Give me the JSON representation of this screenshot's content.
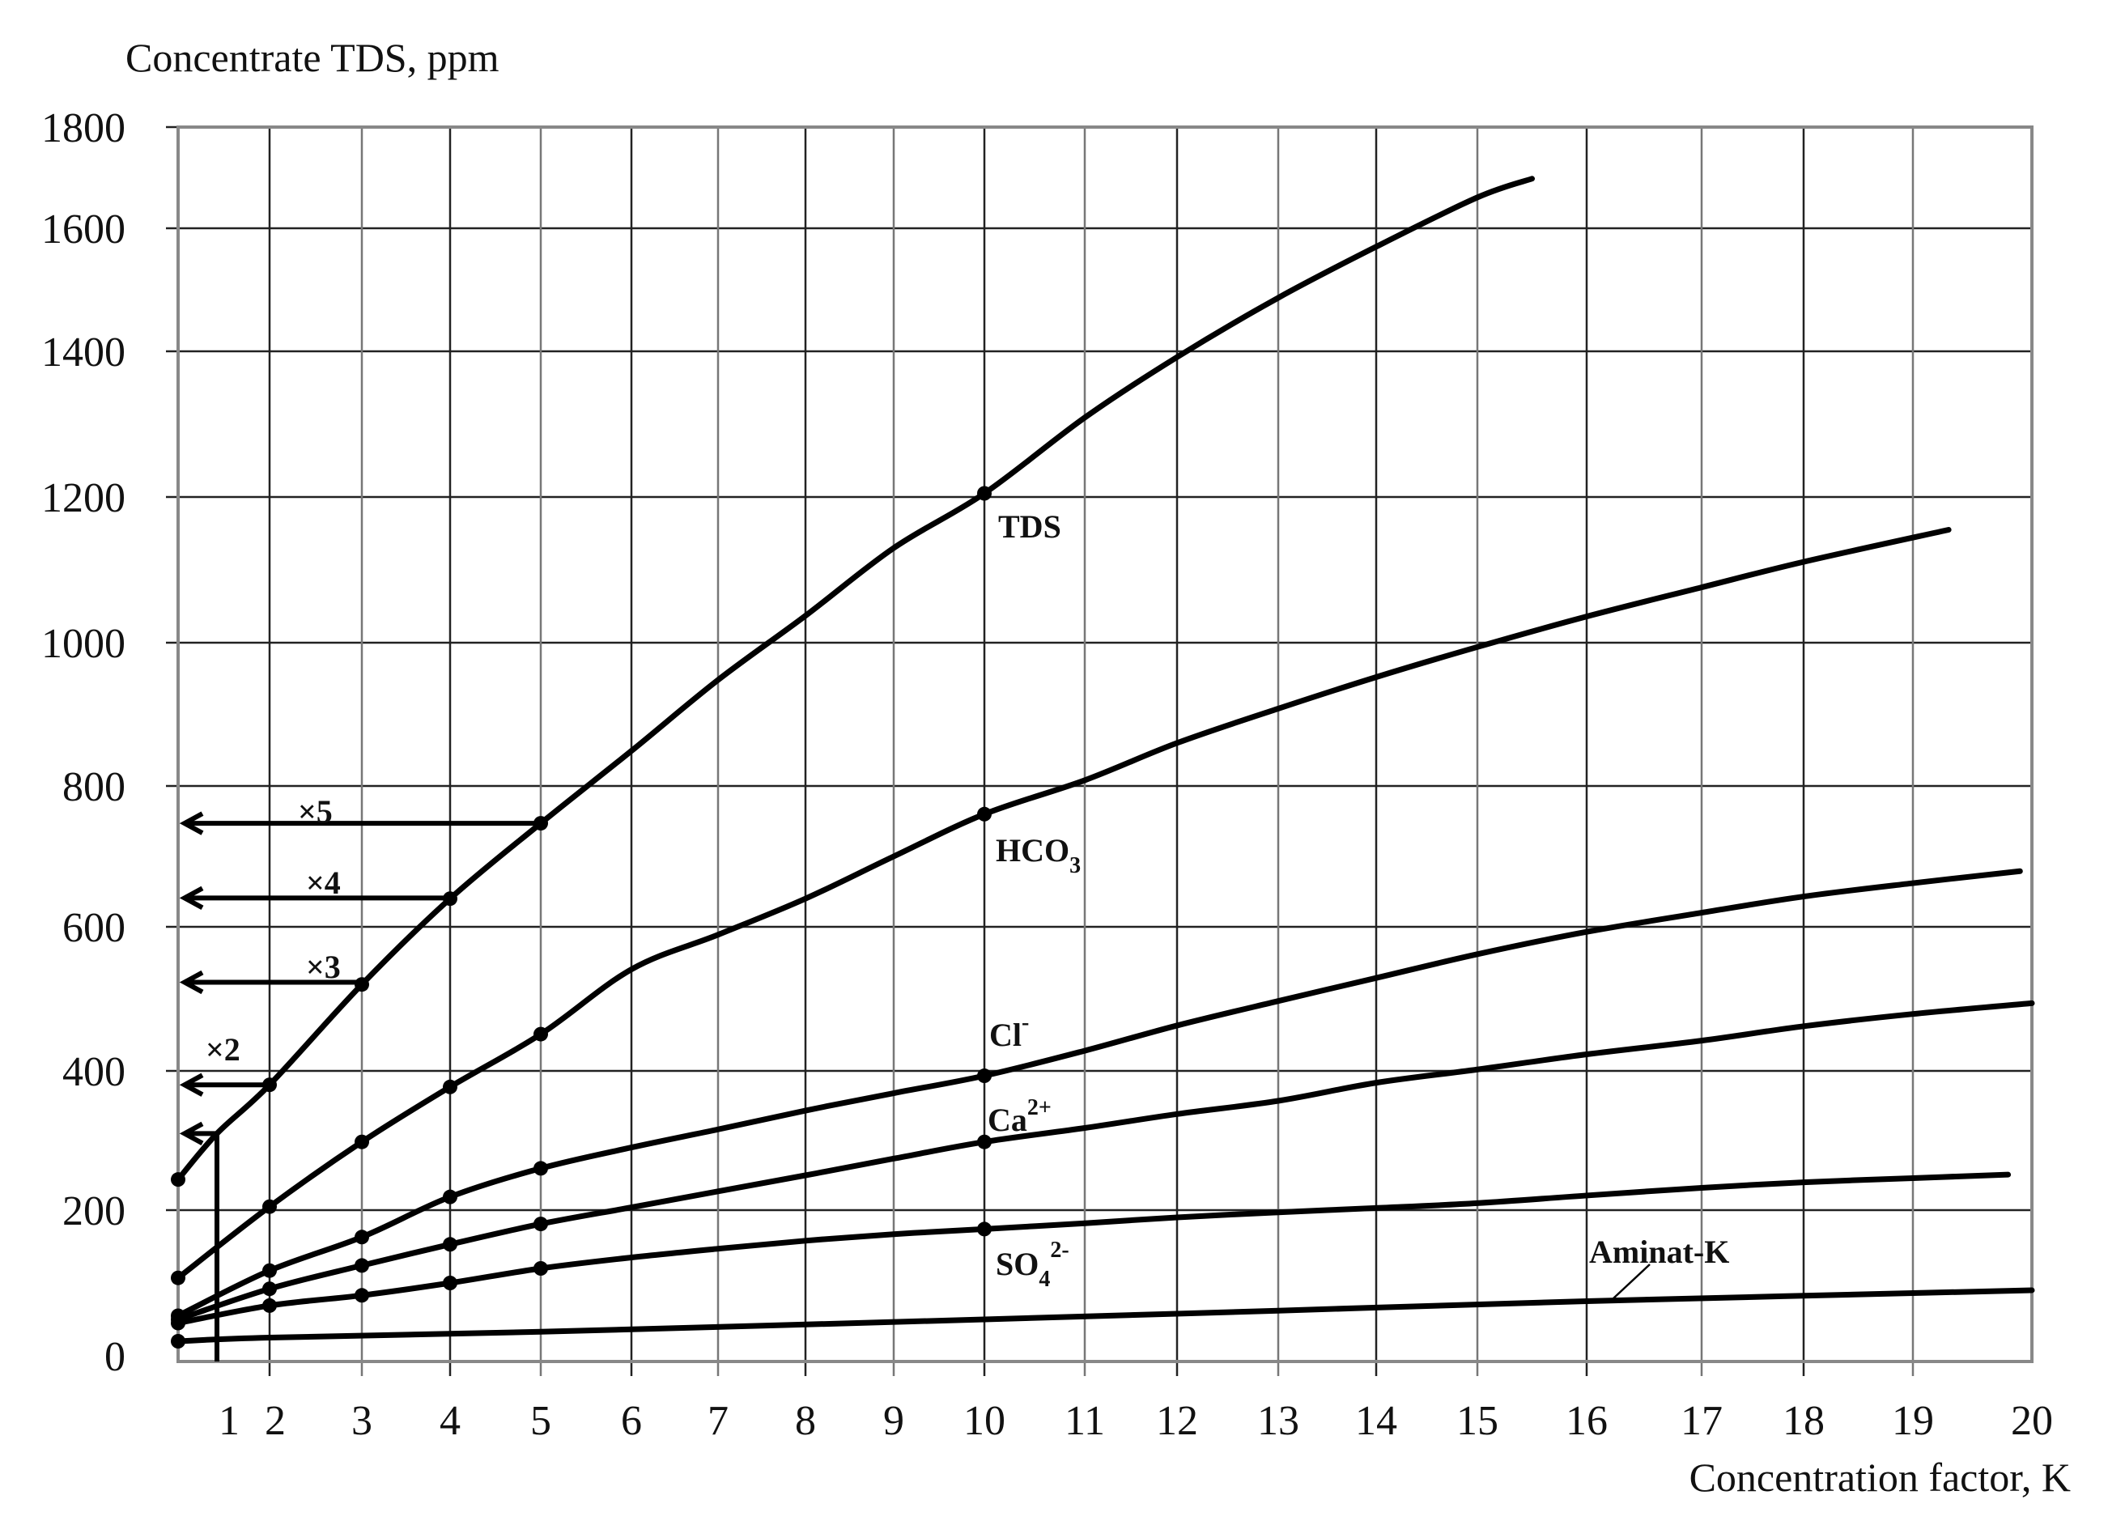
{
  "chart_data": {
    "type": "line",
    "title": "",
    "ylabel": "Concentrate TDS, ppm",
    "xlabel": "Concentration factor, K",
    "ylim": [
      0,
      1800
    ],
    "xlim": [
      0.6,
      20
    ],
    "grid": true,
    "legend": "inline labels",
    "y_ticks": [
      0,
      200,
      400,
      600,
      800,
      1000,
      1200,
      1400,
      1600,
      1800
    ],
    "x_ticks": [
      1,
      2,
      3,
      4,
      5,
      6,
      7,
      8,
      9,
      10,
      11,
      12,
      13,
      14,
      15,
      16,
      17,
      18,
      19,
      20
    ],
    "series": [
      {
        "name": "TDS",
        "label": "TDS",
        "markers_at": [
          0.6,
          2,
          3,
          4,
          5,
          10
        ],
        "x": [
          0.6,
          1,
          2,
          3,
          4,
          5,
          6,
          7,
          8,
          9,
          10,
          11,
          12,
          13,
          14,
          15,
          15.5
        ],
        "values": [
          244,
          310,
          380,
          520,
          640,
          747,
          849,
          948,
          1037,
          1130,
          1205,
          1309,
          1392,
          1487,
          1570,
          1661,
          1698
        ]
      },
      {
        "name": "HCO3",
        "label": "HCO",
        "label_sub": "3",
        "markers_at": [
          0.6,
          2,
          3,
          4,
          5,
          10
        ],
        "x": [
          0.6,
          2,
          3,
          4,
          5,
          6,
          7,
          8,
          9,
          10,
          11,
          12,
          13,
          14,
          15,
          16,
          17,
          18,
          19.3
        ],
        "values": [
          107,
          205,
          298,
          377,
          451,
          541,
          589,
          640,
          700,
          760,
          808,
          860,
          908,
          952,
          994,
          1036,
          1076,
          1111,
          1155
        ]
      },
      {
        "name": "Cl-",
        "label": "Cl",
        "label_sup": "-",
        "markers_at": [
          0.6,
          2,
          3,
          4,
          5,
          10
        ],
        "x": [
          0.6,
          2,
          3,
          4,
          5,
          6,
          7,
          8,
          9,
          10,
          11,
          12,
          13,
          14,
          15,
          16,
          17,
          18,
          19,
          19.9
        ],
        "values": [
          55,
          117,
          163,
          219,
          260,
          290,
          316,
          343,
          368,
          393,
          428,
          463,
          497,
          529,
          562,
          593,
          620,
          643,
          662,
          679
        ]
      },
      {
        "name": "Ca2+",
        "label": "Ca",
        "label_sup": "2+",
        "markers_at": [
          0.6,
          2,
          3,
          4,
          5,
          10
        ],
        "x": [
          0.6,
          2,
          3,
          4,
          5,
          6,
          7,
          8,
          9,
          10,
          11,
          12,
          13,
          14,
          15,
          16,
          17,
          18,
          19,
          20
        ],
        "values": [
          50,
          92,
          124,
          153,
          181,
          204,
          227,
          250,
          274,
          298,
          318,
          338,
          357,
          383,
          402,
          423,
          442,
          462,
          479,
          494
        ]
      },
      {
        "name": "SO4 2-",
        "label": "SO",
        "label_sub": "4",
        "label_sup": "2-",
        "markers_at": [
          0.6,
          2,
          3,
          4,
          5,
          10
        ],
        "x": [
          0.6,
          2,
          3,
          4,
          5,
          6,
          7,
          8,
          9,
          10,
          11,
          12,
          13,
          14,
          15,
          16,
          17,
          18,
          19,
          19.8
        ],
        "values": [
          45,
          69,
          83,
          100,
          120,
          135,
          147,
          158,
          167,
          174,
          182,
          190,
          197,
          203,
          210,
          221,
          232,
          240,
          246,
          251
        ]
      },
      {
        "name": "Aminat-K",
        "label": "Aminat-K",
        "markers_at": [
          0.6
        ],
        "x": [
          0.6,
          2,
          5,
          10,
          13,
          16,
          20
        ],
        "values": [
          20,
          25,
          33,
          50,
          62,
          75,
          90
        ]
      }
    ],
    "annotations": [
      {
        "text": "×5",
        "K": 5,
        "value": 747
      },
      {
        "text": "×4",
        "K": 4,
        "value": 641
      },
      {
        "text": "×3",
        "K": 3,
        "value": 523
      },
      {
        "text": "×2",
        "K": 2,
        "value": 380
      },
      {
        "text": "",
        "K": 1,
        "value": 310
      }
    ]
  },
  "labels": {
    "y_title": "Concentrate TDS, ppm",
    "x_title": "Concentration factor, K",
    "tds": "TDS",
    "hco3": "HCO",
    "hco3_sub": "3",
    "cl": "Cl",
    "cl_sup": "-",
    "ca": "Ca",
    "ca_sup": "2+",
    "so4": "SO",
    "so4_sub": "4",
    "so4_sup": "2-",
    "aminat": "Aminat-K",
    "x5": "×5",
    "x4": "×4",
    "x3": "×3",
    "x2": "×2"
  }
}
